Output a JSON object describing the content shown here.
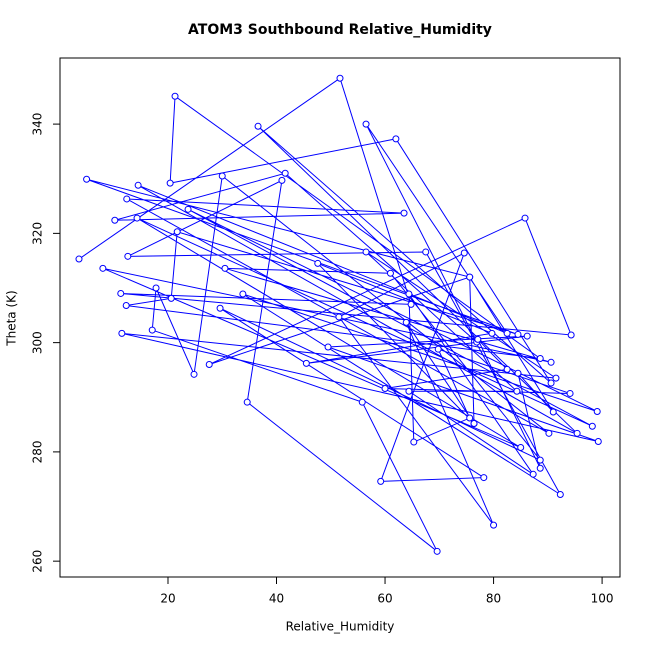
{
  "chart_data": {
    "type": "line",
    "title": "ATOM3 Southbound Relative_Humidity",
    "x_label": "Relative_Humidity",
    "y_label": "Theta (K)",
    "color": "#0000ff",
    "markers": true,
    "x": [
      3.6,
      51.7,
      64.8,
      11.3,
      94.3,
      85.8,
      27.6,
      75.6,
      5,
      84.5,
      21.7,
      20.6,
      12.3,
      88.6,
      21.3,
      20.4,
      62,
      90.6,
      36.6,
      95.4,
      14.5,
      82.5,
      56.5,
      76.9,
      41.6,
      10.2,
      63.5,
      12.4,
      90.2,
      30,
      24.8,
      17.8,
      17.1,
      55.8,
      69.6,
      34.6,
      41,
      12.6,
      67.5,
      92.3,
      33.8,
      99.1,
      23.7,
      98.2,
      14.3,
      85,
      8,
      90.6,
      30.5,
      61,
      88.6,
      29.6,
      78.2,
      59.2,
      74.6,
      51.5,
      80,
      63.9,
      76.4,
      47.6,
      79.7,
      45.5,
      86.2,
      49.5,
      99.3,
      11.5,
      91.5,
      56.5,
      84.3,
      64.4,
      87.3,
      64.4,
      65.3,
      75.6,
      69.8,
      94.1,
      60,
      82.5,
      77.1,
      88.6,
      84.5,
      91,
      75.6,
      76.4
    ],
    "values": [
      315.3,
      348.4,
      307,
      309,
      301.4,
      322.8,
      296,
      312,
      329.9,
      301.5,
      320.3,
      308.1,
      306.8,
      297.1,
      345.1,
      329.2,
      337.3,
      292.6,
      339.6,
      283.4,
      328.8,
      301.7,
      340,
      300.1,
      331,
      322.4,
      323.7,
      326.3,
      283.4,
      330.5,
      294.2,
      310,
      302.3,
      289.1,
      261.8,
      289.1,
      329.7,
      315.8,
      316.6,
      272.2,
      308.9,
      287.4,
      324.4,
      284.7,
      322.8,
      280.8,
      313.6,
      296.4,
      313.6,
      312.7,
      278.5,
      306.3,
      275.3,
      274.6,
      316.4,
      304.7,
      266.6,
      303.7,
      285.2,
      314.5,
      301.7,
      296.2,
      301.2,
      299.2,
      281.9,
      301.7,
      293.5,
      316.6,
      291.1,
      291.1,
      275.9,
      308.9,
      281.8,
      286.2,
      298.8,
      290.7,
      291.6,
      295.1,
      300.6,
      277,
      294.4,
      287.3,
      312,
      285.2
    ],
    "xlim": [
      0.1,
      103.3
    ],
    "ylim": [
      257.1,
      352.1
    ],
    "xticks": [
      20,
      40,
      60,
      80,
      100
    ],
    "yticks": [
      260,
      280,
      300,
      320,
      340
    ]
  }
}
